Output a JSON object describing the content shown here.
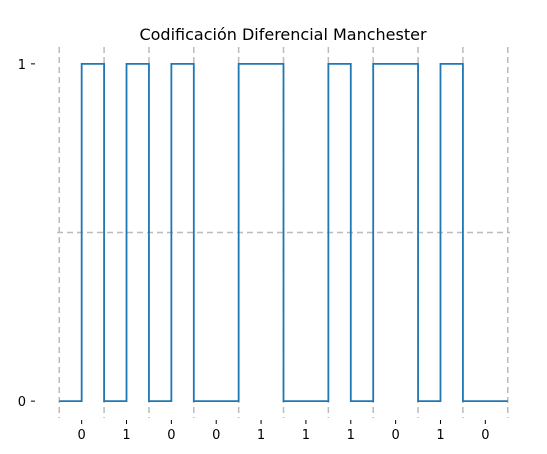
{
  "chart_data": {
    "type": "line",
    "title": "Codificación Diferencial Manchester",
    "xlabel": "",
    "ylabel": "",
    "bits": [
      "0",
      "1",
      "0",
      "0",
      "1",
      "1",
      "1",
      "0",
      "1",
      "0"
    ],
    "signal": {
      "name": "Diferencial Manchester",
      "step_x": [
        0,
        0.5,
        1,
        1.5,
        2,
        2.5,
        3,
        3.5,
        4,
        4.5,
        5,
        5.5,
        6,
        6.5,
        7,
        7.5,
        8,
        8.5,
        9,
        9.5,
        10
      ],
      "levels": [
        0,
        1,
        0,
        1,
        0,
        1,
        0,
        0,
        1,
        1,
        0,
        0,
        1,
        0,
        1,
        1,
        0,
        1,
        0,
        0
      ]
    },
    "xlim": [
      -0.05,
      10.05
    ],
    "ylim": [
      -0.05,
      1.05
    ],
    "yticks": [
      0,
      1
    ],
    "ytick_labels": [
      "0",
      "1"
    ],
    "bit_boundaries": [
      0,
      1,
      2,
      3,
      4,
      5,
      6,
      7,
      8,
      9,
      10
    ],
    "threshold": 0.5,
    "grid": true,
    "colors": {
      "signal": "#1f77b4",
      "guides": "#bbbbbb",
      "text": "#000000"
    }
  }
}
